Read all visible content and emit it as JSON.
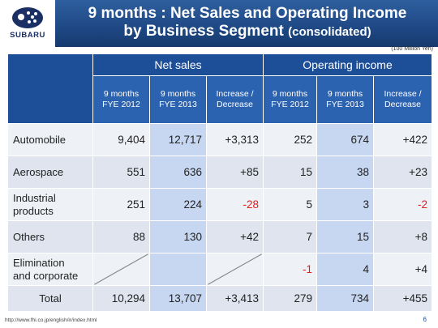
{
  "header": {
    "logo_text": "SUBARU",
    "title_line1": "9 months : Net Sales and Operating Income",
    "title_line2_main": "by Business Segment",
    "title_line2_sub": "(consolidated)"
  },
  "unit_note": "(100 Million Yen)",
  "groups": {
    "net_sales": "Net sales",
    "operating_income": "Operating income"
  },
  "columns": {
    "c1": "9 months\nFYE 2012",
    "c2": "9 months\nFYE 2013",
    "c3": "Increase /\nDecrease",
    "c4": "9 months\nFYE 2012",
    "c5": "9 months\nFYE 2013",
    "c6": "Increase /\nDecrease"
  },
  "rows": [
    {
      "label": "Automobile",
      "ns12": "9,404",
      "ns13": "12,717",
      "nsd": "+3,313",
      "oi12": "252",
      "oi13": "674",
      "oid": "+422"
    },
    {
      "label": "Aerospace",
      "ns12": "551",
      "ns13": "636",
      "nsd": "+85",
      "oi12": "15",
      "oi13": "38",
      "oid": "+23"
    },
    {
      "label": "Industrial\nproducts",
      "ns12": "251",
      "ns13": "224",
      "nsd": "-28",
      "oi12": "5",
      "oi13": "3",
      "oid": "-2"
    },
    {
      "label": "Others",
      "ns12": "88",
      "ns13": "130",
      "nsd": "+42",
      "oi12": "7",
      "oi13": "15",
      "oid": "+8"
    },
    {
      "label": "Elimination\nand corporate",
      "ns12": "",
      "ns13": "",
      "nsd": "",
      "oi12": "-1",
      "oi13": "4",
      "oid": "+4"
    },
    {
      "label": "Total",
      "ns12": "10,294",
      "ns13": "13,707",
      "nsd": "+3,413",
      "oi12": "279",
      "oi13": "734",
      "oid": "+455"
    }
  ],
  "footer": {
    "url": "http://www.fhi.co.jp/english/ir/index.html",
    "page": "6"
  },
  "colors": {
    "header_blue": "#1f4a86",
    "table_header_blue": "#1d4f99",
    "highlight_column": "#c7d7f1",
    "negative": "#e0201b"
  }
}
